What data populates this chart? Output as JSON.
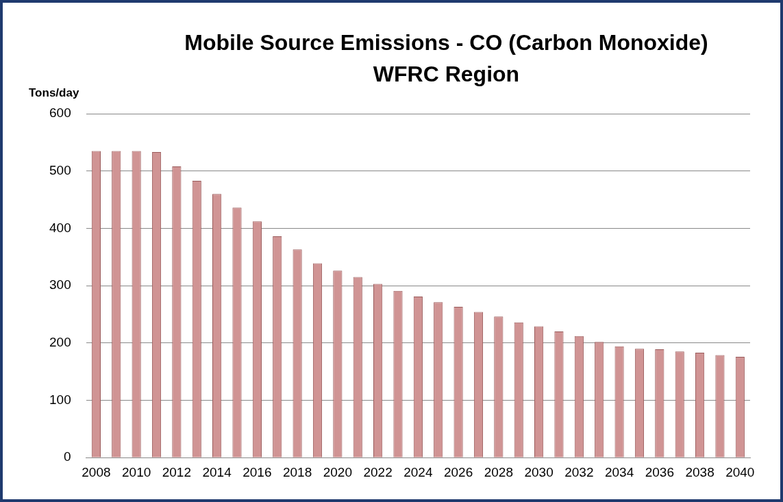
{
  "chart_data": {
    "type": "bar",
    "title": "Mobile Source Emissions - CO (Carbon Monoxide)",
    "subtitle": "WFRC Region",
    "ylabel": "Tons/day",
    "categories": [
      "2008",
      null,
      "2010",
      null,
      "2012",
      null,
      "2014",
      null,
      "2016",
      null,
      "2018",
      null,
      "2020",
      null,
      "2022",
      null,
      "2024",
      null,
      "2026",
      null,
      "2028",
      null,
      "2030",
      null,
      "2032",
      null,
      "2034",
      null,
      "2036",
      null,
      "2038",
      null,
      "2040"
    ],
    "values": [
      535,
      535,
      535,
      533,
      508,
      483,
      460,
      436,
      412,
      386,
      363,
      339,
      326,
      315,
      303,
      291,
      281,
      271,
      263,
      254,
      246,
      236,
      229,
      220,
      212,
      202,
      194,
      190,
      189,
      185,
      183,
      179,
      176
    ],
    "color": "#d09494",
    "ylim": [
      0,
      600
    ],
    "yticks": [
      0,
      100,
      200,
      300,
      400,
      500,
      600
    ],
    "grid": "y",
    "legend": false
  }
}
